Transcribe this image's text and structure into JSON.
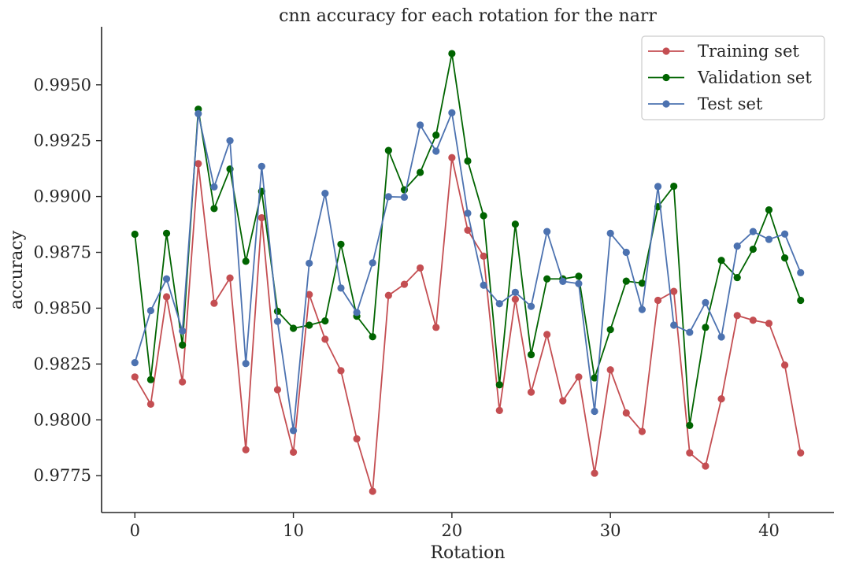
{
  "chart_data": {
    "type": "line",
    "title": "cnn accuracy for each rotation for the narr",
    "xlabel": "Rotation",
    "ylabel": "accuracy",
    "xlim": [
      -2.1,
      44.1
    ],
    "ylim": [
      0.97585,
      0.9976
    ],
    "xticks": [
      0,
      10,
      20,
      30,
      40
    ],
    "xtick_labels": [
      "0",
      "10",
      "20",
      "30",
      "40"
    ],
    "yticks": [
      0.9775,
      0.98,
      0.9825,
      0.985,
      0.9875,
      0.99,
      0.9925,
      0.995
    ],
    "ytick_labels": [
      "0.9775",
      "0.9800",
      "0.9825",
      "0.9850",
      "0.9875",
      "0.9900",
      "0.9925",
      "0.9950"
    ],
    "grid": false,
    "legend_position": "top-right",
    "x": [
      0,
      1,
      2,
      3,
      4,
      5,
      6,
      7,
      8,
      9,
      10,
      11,
      12,
      13,
      14,
      15,
      16,
      17,
      18,
      19,
      20,
      21,
      22,
      23,
      24,
      25,
      26,
      27,
      28,
      29,
      30,
      31,
      32,
      33,
      34,
      35,
      36,
      37,
      38,
      39,
      40,
      41,
      42
    ],
    "series": [
      {
        "name": "Training set",
        "color": "#c44e52",
        "values": [
          0.98192,
          0.9807,
          0.98551,
          0.9817,
          0.99147,
          0.98522,
          0.98635,
          0.97866,
          0.98905,
          0.98135,
          0.97855,
          0.98561,
          0.98361,
          0.9822,
          0.97915,
          0.9768,
          0.98557,
          0.98607,
          0.9868,
          0.98414,
          0.99174,
          0.98849,
          0.98733,
          0.98042,
          0.9854,
          0.98124,
          0.98382,
          0.98085,
          0.98192,
          0.97761,
          0.98224,
          0.98031,
          0.97948,
          0.98535,
          0.98575,
          0.97852,
          0.97793,
          0.98094,
          0.98467,
          0.98446,
          0.98432,
          0.98245,
          0.97852
        ]
      },
      {
        "name": "Validation set",
        "color": "#006400",
        "values": [
          0.98831,
          0.9818,
          0.98835,
          0.98335,
          0.99391,
          0.98946,
          0.99123,
          0.9871,
          0.99023,
          0.98486,
          0.9841,
          0.98424,
          0.98443,
          0.98786,
          0.98464,
          0.98372,
          0.99206,
          0.9903,
          0.99108,
          0.99275,
          0.9964,
          0.99159,
          0.98914,
          0.98157,
          0.98876,
          0.98292,
          0.98631,
          0.98631,
          0.98643,
          0.98188,
          0.98404,
          0.98621,
          0.98612,
          0.98954,
          0.99046,
          0.97975,
          0.98414,
          0.98714,
          0.98637,
          0.98764,
          0.9894,
          0.98725,
          0.98535
        ]
      },
      {
        "name": "Test set",
        "color": "#4c72b0",
        "values": [
          0.98256,
          0.98489,
          0.98631,
          0.98398,
          0.99371,
          0.99043,
          0.9925,
          0.98252,
          0.99135,
          0.98441,
          0.97952,
          0.98701,
          0.99014,
          0.9859,
          0.98481,
          0.98703,
          0.98999,
          0.98997,
          0.9932,
          0.99203,
          0.99375,
          0.98925,
          0.98603,
          0.9852,
          0.98571,
          0.98508,
          0.98843,
          0.9862,
          0.9861,
          0.98038,
          0.98835,
          0.9875,
          0.98494,
          0.99045,
          0.98424,
          0.98392,
          0.98525,
          0.98371,
          0.98778,
          0.98843,
          0.98808,
          0.98832,
          0.98659
        ]
      }
    ]
  }
}
